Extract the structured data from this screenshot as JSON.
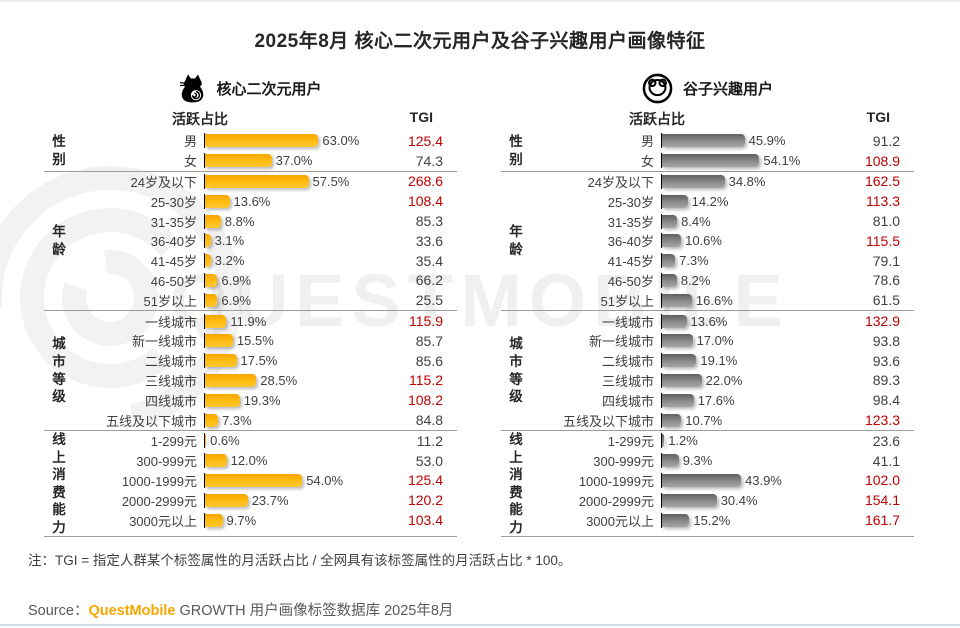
{
  "title": "2025年8月 核心二次元用户及谷子兴趣用户画像特征",
  "columns": {
    "active_ratio": "活跃占比",
    "tgi": "TGI"
  },
  "note": "注：TGI = 指定人群某个标签属性的月活跃占比 / 全网具有该标签属性的月活跃占比 * 100。",
  "source": {
    "prefix": "Source：",
    "brand": "QuestMobile",
    "rest": " GROWTH 用户画像标签数据库 2025年8月",
    "brand_color": "#f7a600"
  },
  "watermark": "QUESTMOBILE",
  "colors": {
    "left_bar": "#ffb612",
    "right_bar": "#8c8c8c",
    "tgi_high": "#c00000",
    "tgi_normal": "#404040"
  },
  "chart_data": [
    {
      "type": "bar",
      "legend": "核心二次元用户",
      "icon": "cat-icon",
      "value_label": "活跃占比",
      "secondary_metric": "TGI",
      "unit": "%",
      "bar_color": "#ffb612",
      "groups": [
        {
          "name": "性别",
          "rows": [
            {
              "label": "男",
              "pct": 63.0,
              "tgi": 125.4
            },
            {
              "label": "女",
              "pct": 37.0,
              "tgi": 74.3
            }
          ]
        },
        {
          "name": "年龄",
          "rows": [
            {
              "label": "24岁及以下",
              "pct": 57.5,
              "tgi": 268.6
            },
            {
              "label": "25-30岁",
              "pct": 13.6,
              "tgi": 108.4
            },
            {
              "label": "31-35岁",
              "pct": 8.8,
              "tgi": 85.3
            },
            {
              "label": "36-40岁",
              "pct": 3.1,
              "tgi": 33.6
            },
            {
              "label": "41-45岁",
              "pct": 3.2,
              "tgi": 35.4
            },
            {
              "label": "46-50岁",
              "pct": 6.9,
              "tgi": 66.2
            },
            {
              "label": "51岁以上",
              "pct": 6.9,
              "tgi": 25.5
            }
          ]
        },
        {
          "name": "城市等级",
          "rows": [
            {
              "label": "一线城市",
              "pct": 11.9,
              "tgi": 115.9
            },
            {
              "label": "新一线城市",
              "pct": 15.5,
              "tgi": 85.7
            },
            {
              "label": "二线城市",
              "pct": 17.5,
              "tgi": 85.6
            },
            {
              "label": "三线城市",
              "pct": 28.5,
              "tgi": 115.2
            },
            {
              "label": "四线城市",
              "pct": 19.3,
              "tgi": 108.2
            },
            {
              "label": "五线及以下城市",
              "pct": 7.3,
              "tgi": 84.8
            }
          ]
        },
        {
          "name": "线上消费能力",
          "rows": [
            {
              "label": "1-299元",
              "pct": 0.6,
              "tgi": 11.2
            },
            {
              "label": "300-999元",
              "pct": 12.0,
              "tgi": 53.0
            },
            {
              "label": "1000-1999元",
              "pct": 54.0,
              "tgi": 125.4
            },
            {
              "label": "2000-2999元",
              "pct": 23.7,
              "tgi": 120.2
            },
            {
              "label": "3000元以上",
              "pct": 9.7,
              "tgi": 103.4
            }
          ]
        }
      ]
    },
    {
      "type": "bar",
      "legend": "谷子兴趣用户",
      "icon": "bear-badge-icon",
      "value_label": "活跃占比",
      "secondary_metric": "TGI",
      "unit": "%",
      "bar_color": "#8c8c8c",
      "groups": [
        {
          "name": "性别",
          "rows": [
            {
              "label": "男",
              "pct": 45.9,
              "tgi": 91.2
            },
            {
              "label": "女",
              "pct": 54.1,
              "tgi": 108.9
            }
          ]
        },
        {
          "name": "年龄",
          "rows": [
            {
              "label": "24岁及以下",
              "pct": 34.8,
              "tgi": 162.5
            },
            {
              "label": "25-30岁",
              "pct": 14.2,
              "tgi": 113.3
            },
            {
              "label": "31-35岁",
              "pct": 8.4,
              "tgi": 81.0
            },
            {
              "label": "36-40岁",
              "pct": 10.6,
              "tgi": 115.5
            },
            {
              "label": "41-45岁",
              "pct": 7.3,
              "tgi": 79.1
            },
            {
              "label": "46-50岁",
              "pct": 8.2,
              "tgi": 78.6
            },
            {
              "label": "51岁以上",
              "pct": 16.6,
              "tgi": 61.5
            }
          ]
        },
        {
          "name": "城市等级",
          "rows": [
            {
              "label": "一线城市",
              "pct": 13.6,
              "tgi": 132.9
            },
            {
              "label": "新一线城市",
              "pct": 17.0,
              "tgi": 93.8
            },
            {
              "label": "二线城市",
              "pct": 19.1,
              "tgi": 93.6
            },
            {
              "label": "三线城市",
              "pct": 22.0,
              "tgi": 89.3
            },
            {
              "label": "四线城市",
              "pct": 17.6,
              "tgi": 98.4
            },
            {
              "label": "五线及以下城市",
              "pct": 10.7,
              "tgi": 123.3
            }
          ]
        },
        {
          "name": "线上消费能力",
          "rows": [
            {
              "label": "1-299元",
              "pct": 1.2,
              "tgi": 23.6
            },
            {
              "label": "300-999元",
              "pct": 9.3,
              "tgi": 41.1
            },
            {
              "label": "1000-1999元",
              "pct": 43.9,
              "tgi": 102.0
            },
            {
              "label": "2000-2999元",
              "pct": 30.4,
              "tgi": 154.1
            },
            {
              "label": "3000元以上",
              "pct": 15.2,
              "tgi": 161.7
            }
          ]
        }
      ]
    }
  ]
}
